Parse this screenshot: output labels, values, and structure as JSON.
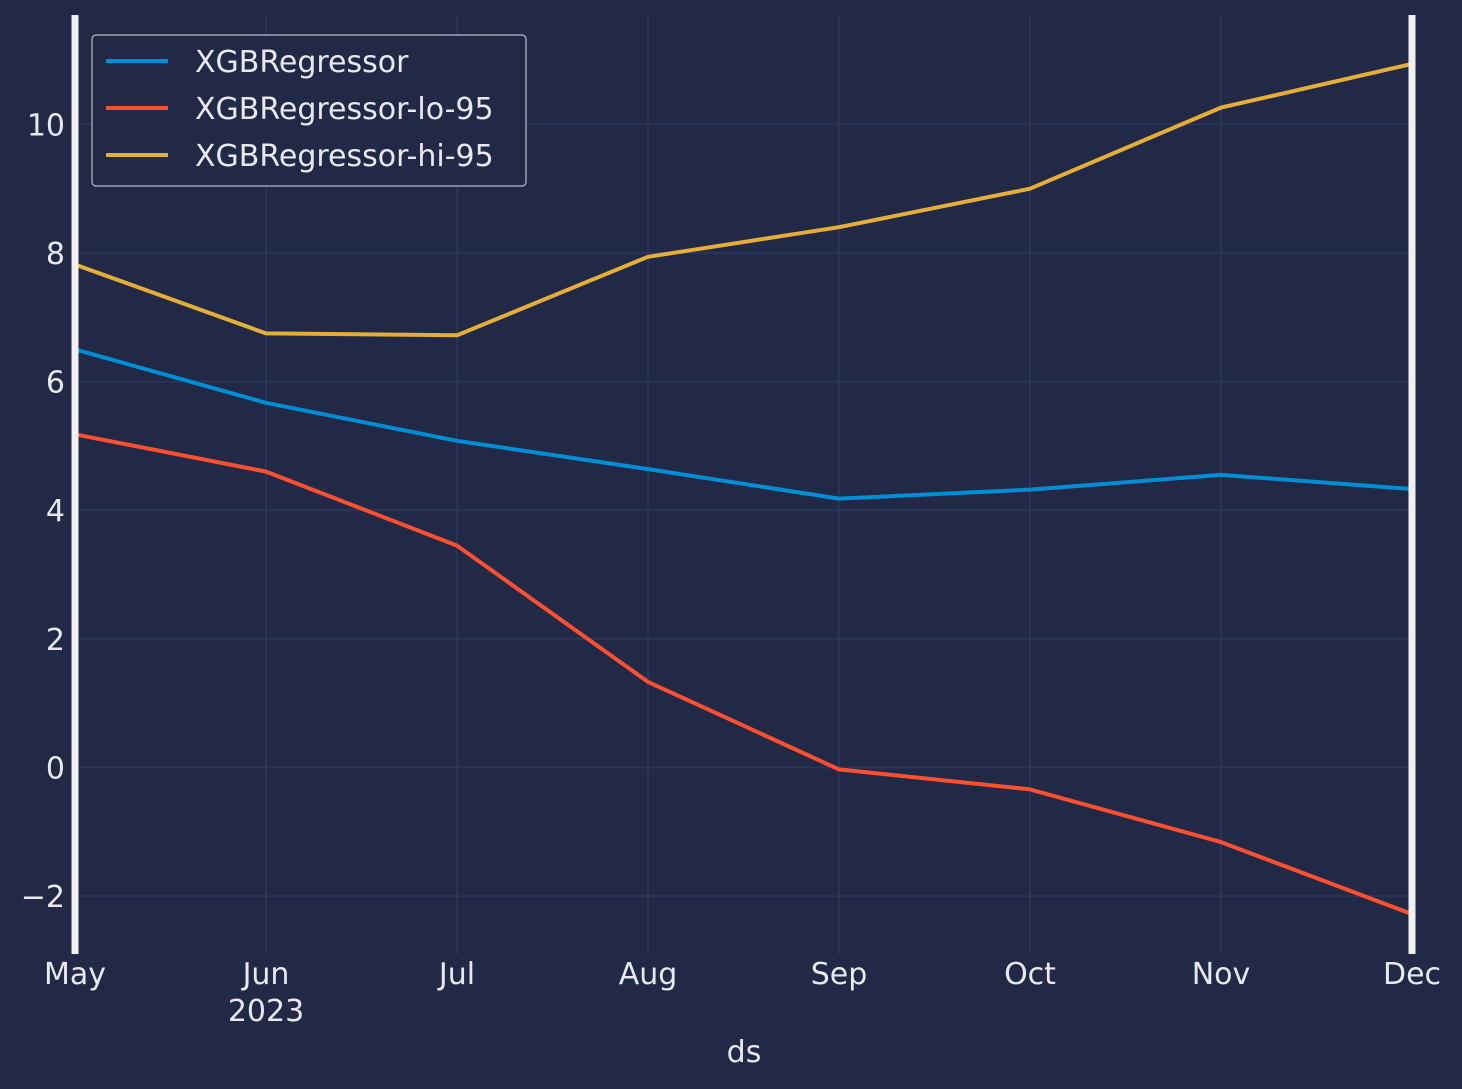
{
  "chart_data": {
    "type": "line",
    "x": [
      "2023-05",
      "2023-06",
      "2023-07",
      "2023-08",
      "2023-09",
      "2023-10",
      "2023-11",
      "2023-12"
    ],
    "x_tick_labels": [
      "May",
      "Jun",
      "Jul",
      "Aug",
      "Sep",
      "Oct",
      "Nov",
      "Dec"
    ],
    "x_year_label": "2023",
    "xlabel": "ds",
    "ylabel": "",
    "title": "",
    "ylim": [
      -2.9,
      11.7
    ],
    "y_ticks": [
      -2,
      0,
      2,
      4,
      6,
      8,
      10
    ],
    "y_tick_labels": [
      "−2",
      "0",
      "2",
      "4",
      "6",
      "8",
      "10"
    ],
    "grid": true,
    "legend_position": "top-left",
    "series": [
      {
        "name": "XGBRegressor",
        "color": "#008fd5",
        "values": [
          6.5,
          5.67,
          5.08,
          4.64,
          4.18,
          4.32,
          4.55,
          4.33
        ]
      },
      {
        "name": "XGBRegressor-lo-95",
        "color": "#fc4f30",
        "values": [
          5.18,
          4.6,
          3.45,
          1.33,
          -0.03,
          -0.34,
          -1.16,
          -2.28
        ]
      },
      {
        "name": "XGBRegressor-hi-95",
        "color": "#e5ae38",
        "values": [
          7.82,
          6.75,
          6.72,
          7.94,
          8.4,
          9.0,
          10.26,
          10.94
        ]
      }
    ]
  },
  "colors": {
    "background": "#212946",
    "grid": "#2a3459",
    "text": "#e8e8ee",
    "spine": "#f0f0f0"
  }
}
